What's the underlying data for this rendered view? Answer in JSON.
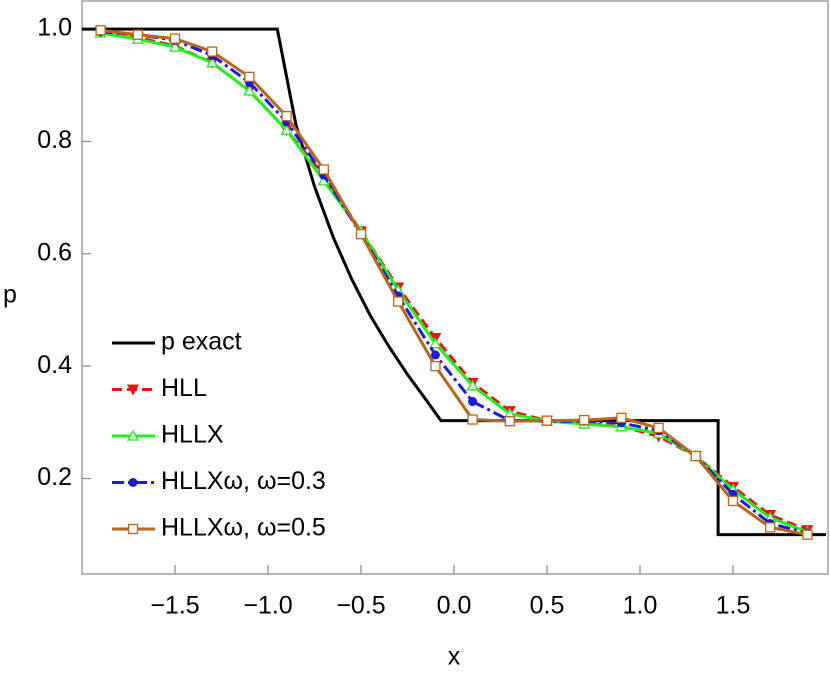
{
  "chart_data": {
    "type": "line",
    "x_label": "x",
    "y_label": "p",
    "xlim": [
      -2,
      2
    ],
    "ylim": [
      0.03,
      1.05
    ],
    "xticks": [
      {
        "value": -1.5,
        "label": "−1.5"
      },
      {
        "value": -1.0,
        "label": "−1.0"
      },
      {
        "value": -0.5,
        "label": "−0.5"
      },
      {
        "value": 0,
        "label": "0.0"
      },
      0.5,
      {
        "value": 1.0,
        "label": "1.0"
      },
      1.5
    ],
    "yticks": [
      0.2,
      0.4,
      0.6,
      0.8,
      {
        "value": 1.0,
        "label": "1.0"
      }
    ],
    "legend": "lower left",
    "series": [
      {
        "name": "p exact",
        "color": "#000000",
        "dash": "solid",
        "marker": "none",
        "x": [
          -2,
          -0.95,
          -0.85,
          -0.75,
          -0.65,
          -0.55,
          -0.45,
          -0.35,
          -0.25,
          -0.15,
          -0.07,
          1.42,
          1.42,
          2
        ],
        "values": [
          1,
          1,
          0.83,
          0.72,
          0.63,
          0.555,
          0.49,
          0.435,
          0.385,
          0.34,
          0.303,
          0.303,
          0.1,
          0.1
        ]
      },
      {
        "name": "HLL",
        "color": "#e8140c",
        "dash": "dashed",
        "marker": "triangle-down",
        "x": [
          -1.9,
          -1.7,
          -1.5,
          -1.3,
          -1.1,
          -0.9,
          -0.7,
          -0.5,
          -0.3,
          -0.1,
          0.1,
          0.3,
          0.5,
          0.7,
          0.9,
          1.1,
          1.3,
          1.5,
          1.7,
          1.9
        ],
        "values": [
          0.995,
          0.985,
          0.97,
          0.94,
          0.89,
          0.82,
          0.74,
          0.64,
          0.54,
          0.45,
          0.37,
          0.32,
          0.303,
          0.298,
          0.293,
          0.275,
          0.24,
          0.185,
          0.135,
          0.108
        ]
      },
      {
        "name": "HLLX",
        "color": "#22ee22",
        "dash": "solid",
        "marker": "triangle-up-open",
        "x": [
          -1.9,
          -1.7,
          -1.5,
          -1.3,
          -1.1,
          -0.9,
          -0.7,
          -0.5,
          -0.3,
          -0.1,
          0.1,
          0.3,
          0.5,
          0.7,
          0.9,
          1.1,
          1.3,
          1.5,
          1.7,
          1.9
        ],
        "values": [
          0.993,
          0.982,
          0.968,
          0.94,
          0.89,
          0.82,
          0.73,
          0.64,
          0.535,
          0.44,
          0.365,
          0.315,
          0.302,
          0.297,
          0.292,
          0.28,
          0.24,
          0.18,
          0.13,
          0.105
        ]
      },
      {
        "name": "HLLXω, ω=0.3",
        "color": "#1a1ad8",
        "dash": "dashdot",
        "marker": "circle",
        "x": [
          -1.9,
          -1.7,
          -1.5,
          -1.3,
          -1.1,
          -0.9,
          -0.7,
          -0.5,
          -0.3,
          -0.1,
          0.1,
          0.3,
          0.5,
          0.7,
          0.9,
          1.1,
          1.3,
          1.5,
          1.7,
          1.9
        ],
        "values": [
          0.995,
          0.99,
          0.98,
          0.953,
          0.905,
          0.835,
          0.74,
          0.635,
          0.525,
          0.42,
          0.337,
          0.303,
          0.302,
          0.302,
          0.299,
          0.285,
          0.24,
          0.172,
          0.12,
          0.103
        ]
      },
      {
        "name": "HLLXω, ω=0.5",
        "color": "#b8651d",
        "dash": "solid",
        "marker": "square-open",
        "x": [
          -1.9,
          -1.7,
          -1.5,
          -1.3,
          -1.1,
          -0.9,
          -0.7,
          -0.5,
          -0.3,
          -0.1,
          0.1,
          0.3,
          0.5,
          0.7,
          0.9,
          1.1,
          1.3,
          1.5,
          1.7,
          1.9
        ],
        "values": [
          0.998,
          0.99,
          0.983,
          0.96,
          0.915,
          0.845,
          0.75,
          0.635,
          0.515,
          0.4,
          0.305,
          0.302,
          0.303,
          0.304,
          0.308,
          0.29,
          0.24,
          0.16,
          0.113,
          0.1
        ]
      }
    ]
  }
}
